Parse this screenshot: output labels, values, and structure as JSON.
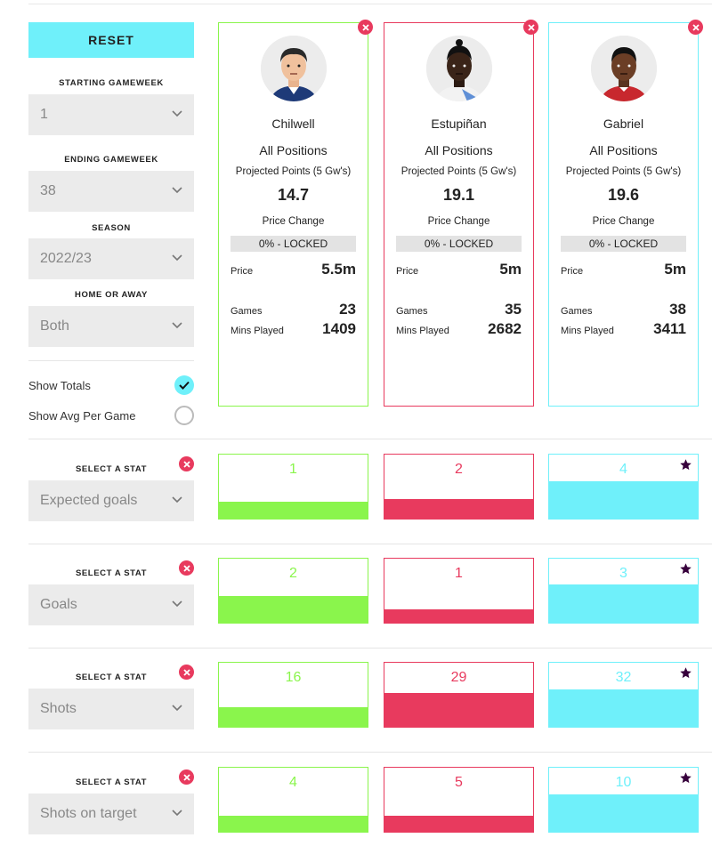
{
  "controls": {
    "reset_label": "RESET",
    "starting_gameweek": {
      "label": "STARTING GAMEWEEK",
      "value": "1"
    },
    "ending_gameweek": {
      "label": "ENDING GAMEWEEK",
      "value": "38"
    },
    "season": {
      "label": "SEASON",
      "value": "2022/23"
    },
    "home_or_away": {
      "label": "HOME OR AWAY",
      "value": "Both"
    },
    "show_totals": {
      "label": "Show Totals",
      "checked": true
    },
    "show_avg": {
      "label": "Show Avg Per Game",
      "checked": false
    }
  },
  "colors": {
    "green": "#8af54c",
    "red": "#e83a5e",
    "cyan": "#6ff0fa",
    "navy": "#37003c"
  },
  "players": [
    {
      "name": "Chilwell",
      "positions": "All Positions",
      "projected_label": "Projected Points (5 Gw's)",
      "projected": "14.7",
      "price_change_label": "Price Change",
      "price_change": "0% - LOCKED",
      "price_label": "Price",
      "price": "5.5m",
      "games_label": "Games",
      "games": "23",
      "mins_label": "Mins Played",
      "mins": "1409"
    },
    {
      "name": "Estupiñan",
      "positions": "All Positions",
      "projected_label": "Projected Points (5 Gw's)",
      "projected": "19.1",
      "price_change_label": "Price Change",
      "price_change": "0% - LOCKED",
      "price_label": "Price",
      "price": "5m",
      "games_label": "Games",
      "games": "35",
      "mins_label": "Mins Played",
      "mins": "2682"
    },
    {
      "name": "Gabriel",
      "positions": "All Positions",
      "projected_label": "Projected Points (5 Gw's)",
      "projected": "19.6",
      "price_change_label": "Price Change",
      "price_change": "0% - LOCKED",
      "price_label": "Price",
      "price": "5m",
      "games_label": "Games",
      "games": "38",
      "mins_label": "Mins Played",
      "mins": "3411"
    }
  ],
  "stats": [
    {
      "label": "SELECT A STAT",
      "stat": "Expected goals",
      "values": [
        "1",
        "2",
        "4"
      ],
      "fill_fraction": [
        0.25,
        0.3,
        0.57
      ],
      "best_index": 2
    },
    {
      "label": "SELECT A STAT",
      "stat": "Goals",
      "values": [
        "2",
        "1",
        "3"
      ],
      "fill_fraction": [
        0.4,
        0.2,
        0.58
      ],
      "best_index": 2
    },
    {
      "label": "SELECT A STAT",
      "stat": "Shots",
      "values": [
        "16",
        "29",
        "32"
      ],
      "fill_fraction": [
        0.3,
        0.52,
        0.57
      ],
      "best_index": 2
    },
    {
      "label": "SELECT A STAT",
      "stat": "Shots on target",
      "values": [
        "4",
        "5",
        "10"
      ],
      "fill_fraction": [
        0.24,
        0.24,
        0.57
      ],
      "best_index": 2
    }
  ]
}
